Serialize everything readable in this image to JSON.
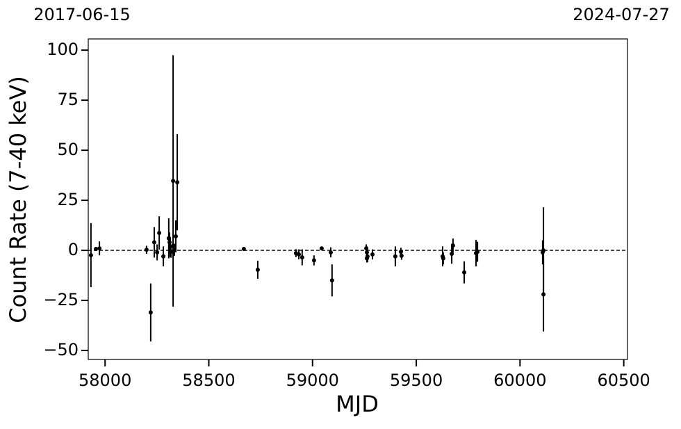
{
  "chart_data": {
    "type": "errorbar",
    "x_label": "MJD",
    "y_label": "Count Rate (7-40 keV)",
    "x": [
      57932,
      57956,
      57973,
      58200,
      58220,
      58237,
      58251,
      58261,
      58281,
      58307,
      58311,
      58314,
      58318,
      58328,
      58328,
      58334,
      58341,
      58348,
      58669,
      58736,
      58920,
      58934,
      58950,
      59007,
      59044,
      59088,
      59094,
      59259,
      59262,
      59265,
      59262,
      59289,
      59399,
      59426,
      59429,
      59627,
      59630,
      59671,
      59677,
      59731,
      59788,
      59795,
      60109,
      60113,
      60113
    ],
    "values": [
      -2.4,
      0.7,
      1,
      0.3,
      -31,
      4,
      -1,
      8.7,
      -3,
      6,
      4,
      1.7,
      -0.7,
      34.7,
      2.4,
      0.3,
      7,
      34,
      0.7,
      -9.7,
      -1.4,
      -2,
      -3.5,
      -5,
      1,
      -1,
      -15,
      1,
      -1,
      -3,
      -4,
      -2,
      -3,
      -0.7,
      -2.7,
      -3,
      -4,
      -1.7,
      2.4,
      -11,
      -1.4,
      -0.7,
      -1,
      0,
      -22
    ],
    "errors": [
      16,
      1,
      3.5,
      2,
      14.5,
      7.6,
      4,
      8.3,
      5,
      10,
      5,
      5,
      3,
      62.8,
      6,
      3,
      8,
      24,
      1,
      4.5,
      2,
      2.5,
      4,
      2.5,
      1,
      2.5,
      8,
      2,
      3,
      3,
      2,
      2.5,
      5,
      2,
      2,
      5,
      3,
      5,
      3.5,
      5.5,
      6.6,
      5,
      6,
      21.5,
      18.5
    ],
    "color": "#000000",
    "hline": 0,
    "xlim": [
      57919,
      60518
    ],
    "ylim": [
      -54.5,
      105.6
    ],
    "xticks": [
      58000,
      58500,
      59000,
      59500,
      60000,
      60500
    ],
    "yticks": [
      {
        "value": -50,
        "label": "−50"
      },
      {
        "value": -25,
        "label": "−25"
      },
      0,
      25,
      50,
      75,
      100
    ],
    "x2ticks": [
      {
        "value": 57919,
        "label": "2017-06-15"
      },
      {
        "value": 60518,
        "label": "2024-07-27"
      }
    ]
  }
}
